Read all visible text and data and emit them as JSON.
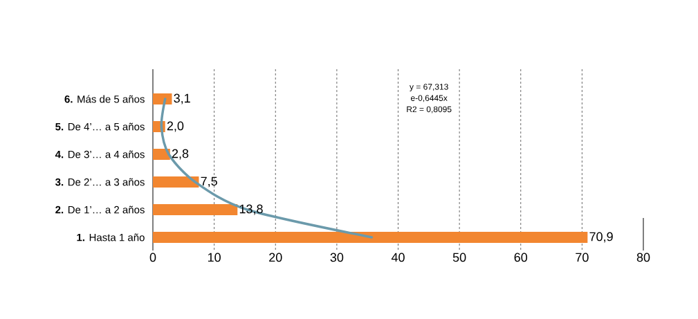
{
  "chart_data": {
    "type": "bar",
    "orientation": "horizontal",
    "categories": [
      "**6.** Más de 5 años",
      "**5.** De 4’… a 5 años",
      "**4.** De 3’… a 4 años",
      "**3.** De 2’… a 3 años",
      "**2.** De 1’… a 2 años",
      "**1.** Hasta 1 año"
    ],
    "series": [
      {
        "color": "#f28630",
        "values": [
          3.1,
          2.0,
          2.8,
          7.5,
          13.8,
          70.9
        ],
        "value_labels": [
          "3,1",
          "2,0",
          "2,8",
          "7,5",
          "13,8",
          "70,9"
        ]
      },
      {
        "type": "line",
        "color": "#6b9aab",
        "values": [
          2.0,
          1.4,
          2.6,
          6.9,
          15.4,
          35.7
        ]
      }
    ],
    "xlim": [
      0,
      80
    ],
    "xticks": [
      0,
      10,
      20,
      30,
      40,
      50,
      60,
      70,
      80
    ],
    "grid": "x",
    "annotations": [
      "y = 67,313",
      "e-0,6445x",
      "R2 = 0,8095"
    ]
  }
}
